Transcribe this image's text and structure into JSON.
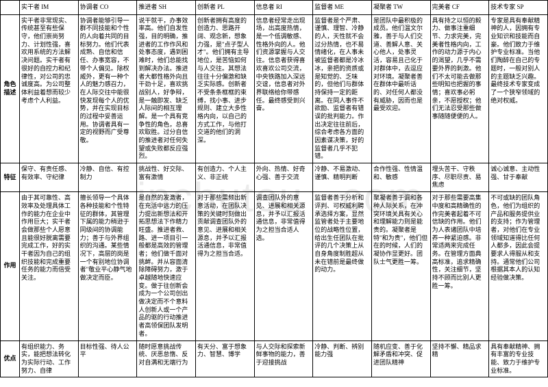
{
  "watermark": "inchutou . com",
  "headers": {
    "c1": "实干者 IM",
    "c2": "协调者 CO",
    "c3": "推进者 SH",
    "c4": "创新者 PL",
    "c5": "信息者 RI",
    "c6": "监督者 ME",
    "c7": "凝聚者 TW",
    "c8": "完美者 CF",
    "c9": "技术专家 SP"
  },
  "rows": {
    "desc": {
      "label": "角色描述",
      "c1": "实干者非常现实、传统甚至有些保守，他们崇尚努力、计划性强，喜欢用系统的方法解决问题。实干者有很好的自控力和纪律性，对公司的忠诚度高。为公司整体利益着想而较少考虑个人利益。",
      "c2": "协调者能够引导一群不同技能和个性的人向着共同的目标努力。他们代表成熟、自信和信任、办事宽容，不带个人偏见。除权威外，更有一种个人的魅力感召力，在人际交往中能很快发现每个人的优势，并在实现目标的过程中妥善运用。协调者具有一定的视野而广受尊敬。",
      "c3": "说干就干，办事效率高。他们自发性强，目的明确，推进者的工作作风和处事态度，遇到困难时，他们总能找到解决办法。推进者大都性格外向且干劲十足，喜欢挑战别人，好争辩，是一触即发、缺乏人际间的相互理解。是一个具有竞争性的角色，总喜欢取胜。过分自信的推进者对任何失望或失败都反应强烈。",
      "c4": "创新者拥有高度的创造力、思路开阔、观念新，想象力强，是\"点子型人才\"。他们拥有主导地位，是苦恼如何与人交往。其想法往往十分偏激和缺乏实际感。创新者不受条条框框的束缚，找小事、进步规则、建立大多性格内向，以自己的方式工作，与他打交道的他们的洞深。",
      "c5": "信息者经常走出现场，出高度热情，是一个低调敏感、性格外向的人。他们资源掌握与人交往。信息者获得喜欢喜欢公司交流，中央铁路加入深远交谊，信息者对外界联络给你带感任。最终感受到兴奋。",
      "c6": "监督者是个严肃、谨慎、理智、冷静的人，天性就不会过分热情，也不易情绪化，在人事未被监督者都是冷冰冰，亲把的资质或是知觉的、乏味的，但他们与群体持保持一定的距离。在同人事件不欲励、监督者有错误的批判能力。作出决定往往前后，综合考虑各方面的因素谋决策，好的监督者几乎不犯错。",
      "c7": "是团队中最积极的成员。他们温文尔雅，善于与人们交道、善解人意、关心他人，处事灵活，容易且己化于对群体中，去逗应对环境。凝聚者善在群体中最听话的、对任何人都没有威胁，因而也是最受欢迎。",
      "c8": "具有持之以恒的毅力、做事注重细节、力求完美，完美者性格内向，工作的动力源于内心的渴望，几乎不需要外界的刺激。他们不太可能去做那些明知也把握的事情；喜欢事必躬亲，不愿授权；他们无法忍受那些做事随随便便的人。",
      "c9": "专家是具有奉献精神的人，因拥有专业知识和技能而自豪。他们致力于维护专业标准。当他们陶醉在自己的专题时，一般对别人的主题缺乏兴趣。最终技术专家变成了一个狭窄领域的绝对权威。"
    },
    "traits": {
      "label": "特征",
      "c1": "保守、有责任感、有效率、守纪律",
      "c2": "冷静、自信、有控制力",
      "c3": "挑战性、好交际、富有激情",
      "c4": "有创造力、个人主义、非正统",
      "c5": "外向、热情、好奇心强、善于交流",
      "c6": "冷静、不易激动、谨慎、精明判断",
      "c7": "合作性强、性情温和、敏感",
      "c8": "埋头苦干、守秩序、尽职尽责、易焦虑",
      "c9": "诚心诚意、主动性强、甘于奉献"
    },
    "role": {
      "label": "作用",
      "c1": "由于其可靠性、高效率及处理具体工作的能力在企业中作用巨大；实干者会做那些个人愿意且能很好脱离需要完成工作，好的实干者因为自己的组织技能和完成重要任务的能力而倍受关注。",
      "c2": "擅长领导一个具体各种技能和个性特征的群体，其管理下属的能力稍逊于同级间的协调能力；善于与外界组织的沟通。某些情况下，高层的岗是一个有别地位协调者\"敬业平心静气地做决定而臣。",
      "c3": "是自然的发激者，在充活中远力的压力提出新想法和开拓思想法下作精力旺盛。推进者救、路、进一项目引一般都是高效的管理者；他们做千面对挑衅。并从容面清除障碍努力，激于卓越随地快速应变。做于往创新会成为一个公司创出做决定而不个意料人创新人或一个产品的驱的行动推进者高领保团队发明者。",
      "c4": "对于那些需频出新意活动，在团队决策的关键时刻做出贡献调查团队外的意见、进展和相关源息，并予以汇报活通信息，非常值得为之担当合适。",
      "c5": "调查团队外的意见、进展和相关源息，并予以汇报活通信息，非常值得为之担当合适人选。",
      "c6": "监督者善于分析和评判、可权威利聘承选择方案，显然监管者处于主要地位的战略性位置，给出生任团队在批评的几个决策上从自身角度制胜超从未在错前是最终做的动力。",
      "c7": "聚凝者善于调和各种人际关系，在冲突环境关具有关心和理解能力则是能贵的。凝聚者是特\"和为贵\"，他们但在的时候，人们的凝协作显更好。团队士气更胜一筹。",
      "c8": "对于那些需要高集中度和高精确性的作完美者起着不可信缺的作用。他们为人表诸团队中培养一种紧迫感。非常适两来完成任务。在管理方面典高标准，追求精确性，关注细节，坚持不顾而比别人更胜一筹。",
      "c9": "不可或缺的团队角色，他们为组织的产品和服务提供业的支持；作为管理者，对他们在专业领域知道得比任何人都多，因此会提要求人得服从和支持。通常他们公司根据其本人的认知经验做决策。"
    },
    "strength": {
      "label": "优点",
      "c1": "有组织能力、务实，能把想法转化为实际行动、工作努力、自律",
      "c2": "目标性强、待人公平",
      "c3": "随时愿意挑战传统、厌恶怠惰、反对自满和无端行为",
      "c4": "有天分、富于想象力、智慧、博学",
      "c5": "与人交际和探索新鲜事物的能力，善于迎接挑战",
      "c6": "冷静、判断、辨别能力强",
      "c7": "随机应变、善于化解矛盾和冲突、促进团队精神",
      "c8": "坚持不懈、精品求精",
      "c9": "具有奉献精神、拥有丰富的专业技能、致力于维护专业标准。"
    }
  }
}
